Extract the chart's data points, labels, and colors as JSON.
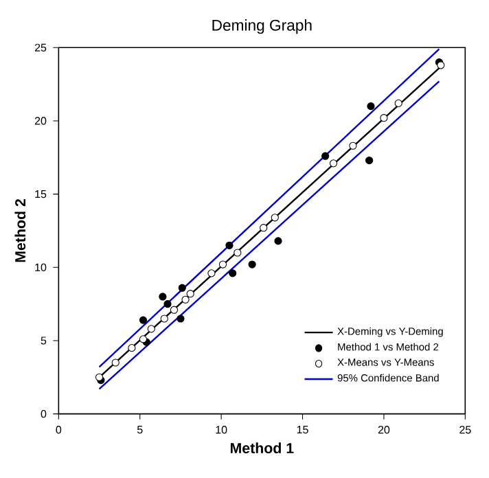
{
  "chart_data": {
    "type": "scatter",
    "title": "Deming Graph",
    "xlabel": "**Method 1**",
    "ylabel": "**Method 2**",
    "xlim": [
      0,
      25
    ],
    "ylim": [
      0,
      25
    ],
    "xticks": [
      0,
      5,
      10,
      15,
      20,
      25
    ],
    "yticks": [
      0,
      5,
      10,
      15,
      20,
      25
    ],
    "grid": false,
    "legend": "bottom right",
    "series": [
      {
        "name": "X-Deming vs Y-Deming",
        "type": "line",
        "color": "#000000",
        "marker": "none",
        "x": [
          2.5,
          23.6
        ],
        "values": [
          2.5,
          23.8
        ]
      },
      {
        "name": "Method 1 vs Method 2",
        "color": "#000000",
        "marker": "circle",
        "x": [
          2.6,
          5.2,
          5.4,
          6.4,
          6.7,
          7.5,
          7.6,
          10.5,
          10.7,
          11.9,
          13.5,
          16.4,
          19.1,
          19.2,
          23.4
        ],
        "values": [
          2.3,
          6.4,
          4.9,
          8.0,
          7.5,
          6.5,
          8.6,
          11.5,
          9.6,
          10.2,
          11.8,
          17.6,
          17.3,
          21.0,
          24.0
        ]
      },
      {
        "name": "X-Means vs Y-Means",
        "color": "#ffffff",
        "marker": "circle",
        "x": [
          2.5,
          3.5,
          4.5,
          5.2,
          5.7,
          6.5,
          7.1,
          7.8,
          8.1,
          9.4,
          10.1,
          11.0,
          12.6,
          13.3,
          16.9,
          18.1,
          20.0,
          20.9,
          23.5
        ],
        "values": [
          2.5,
          3.5,
          4.5,
          5.1,
          5.8,
          6.5,
          7.1,
          7.8,
          8.2,
          9.6,
          10.2,
          11.0,
          12.7,
          13.4,
          17.1,
          18.3,
          20.2,
          21.2,
          23.8
        ]
      },
      {
        "name": "95% Confidence Band",
        "type": "line",
        "color": "#0000cc",
        "marker": "none",
        "x": [
          2.5,
          23.4
        ],
        "values": [
          3.2,
          24.9
        ]
      },
      {
        "type": "line",
        "color": "#0000cc",
        "marker": "none",
        "x": [
          2.5,
          23.4
        ],
        "values": [
          1.7,
          22.7
        ]
      }
    ]
  }
}
